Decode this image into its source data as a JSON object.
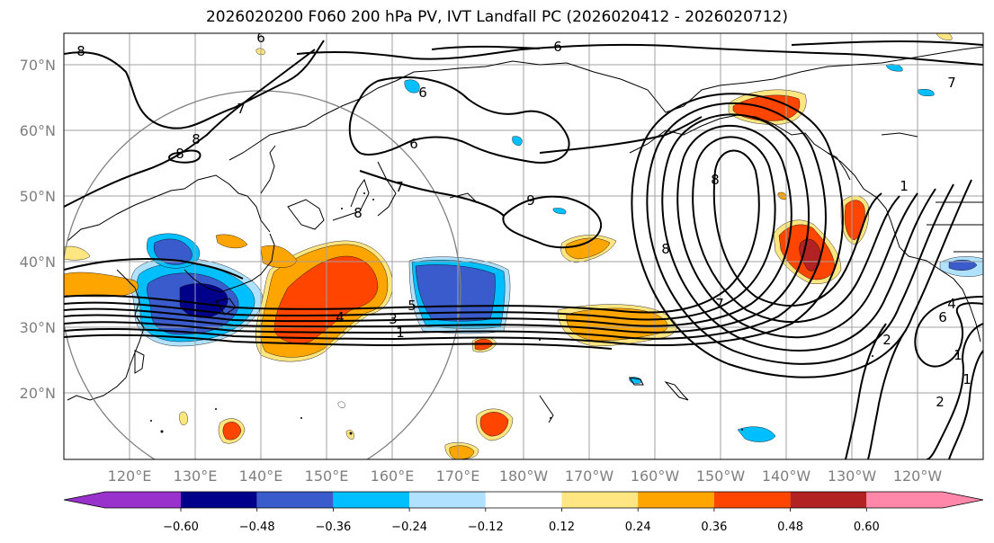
{
  "title": "2026020200 F060 200 hPa PV, IVT Landfall PC (2026020412 - 2026020712)",
  "map": {
    "lat_labels": [
      "70°N",
      "60°N",
      "50°N",
      "40°N",
      "30°N",
      "20°N"
    ],
    "lon_labels": [
      "120°E",
      "130°E",
      "140°E",
      "150°E",
      "160°E",
      "170°E",
      "180°W",
      "170°W",
      "160°W",
      "150°W",
      "140°W",
      "130°W",
      "120°W"
    ],
    "contour_labels": [
      "8",
      "7",
      "8",
      "6",
      "8",
      "6",
      "7",
      "9",
      "8",
      "8",
      "6",
      "7",
      "1",
      "7",
      "8",
      "4",
      "3",
      "1",
      "5",
      "6",
      "2",
      "4",
      "1",
      "2",
      "1",
      "6"
    ]
  },
  "colorbar": {
    "ticks": [
      "−0.60",
      "−0.48",
      "−0.36",
      "−0.24",
      "−0.12",
      "0.12",
      "0.24",
      "0.36",
      "0.48",
      "0.60"
    ],
    "colors": [
      "#9932cc",
      "#00008b",
      "#3a5bcc",
      "#00bfff",
      "#b0e2ff",
      "#ffffff",
      "#ffe680",
      "#ffa500",
      "#ff4500",
      "#b22222",
      "#ff88aa"
    ]
  }
}
